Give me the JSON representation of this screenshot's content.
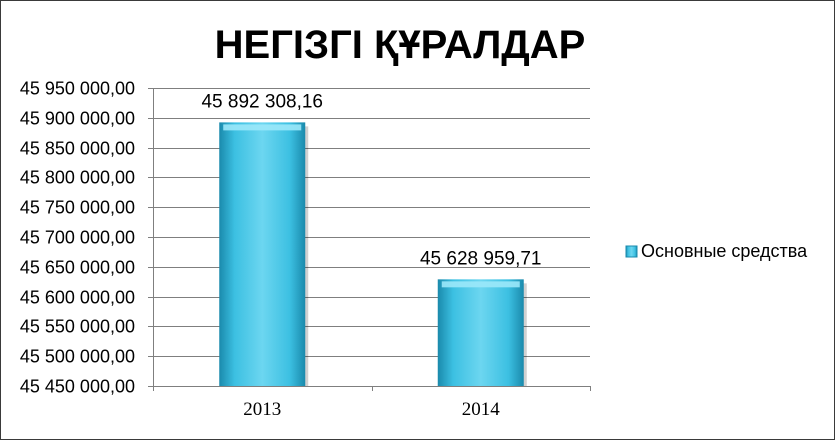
{
  "chart_data": {
    "type": "bar",
    "title": "НЕГІЗГІ ҚҰРАЛДАР",
    "xlabel": "",
    "ylabel": "",
    "categories": [
      "2013",
      "2014"
    ],
    "series": [
      {
        "name": "Основные средства",
        "values": [
          45892308.16,
          45628959.71
        ],
        "value_labels": [
          "45 892 308,16",
          "45 628 959,71"
        ]
      }
    ],
    "ylim": [
      45450000,
      45950000
    ],
    "yticks": [
      45450000,
      45500000,
      45550000,
      45600000,
      45650000,
      45700000,
      45750000,
      45800000,
      45850000,
      45900000,
      45950000
    ],
    "ytick_labels": [
      "45 450 000,00",
      "45 500 000,00",
      "45 550 000,00",
      "45 600 000,00",
      "45 650 000,00",
      "45 700 000,00",
      "45 750 000,00",
      "45 800 000,00",
      "45 850 000,00",
      "45 900 000,00",
      "45 950 000,00"
    ],
    "grid": true,
    "legend_position": "right",
    "colors": {
      "bar": "#2fb2d6",
      "bar_light": "#8ee3f7",
      "bar_dark": "#1a8aac",
      "grid": "#7f7f7f"
    }
  }
}
